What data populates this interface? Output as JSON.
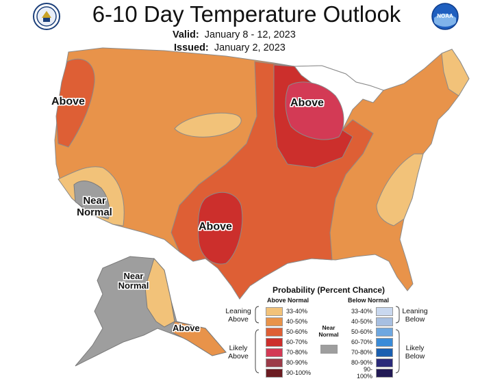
{
  "header": {
    "title": "6-10 Day Temperature Outlook",
    "valid_label": "Valid:",
    "valid_value": "January 8 - 12, 2023",
    "issued_label": "Issued:",
    "issued_value": "January 2, 2023"
  },
  "logos": {
    "left": "commerce-seal-icon",
    "right": "noaa-logo-icon"
  },
  "map_labels": {
    "above_west": "Above",
    "above_midwest": "Above",
    "above_texas": "Above",
    "near_normal_ca": "Near Normal",
    "near_normal_ak": "Near Normal",
    "above_ak": "Above"
  },
  "legend": {
    "title": "Probability (Percent Chance)",
    "above_header": "Above Normal",
    "below_header": "Below Normal",
    "leaning_above": "Leaning Above",
    "likely_above": "Likely Above",
    "leaning_below": "Leaning Below",
    "likely_below": "Likely Below",
    "near_normal": "Near Normal",
    "near_color": "#9e9e9e",
    "above": [
      {
        "range": "33-40%",
        "color": "#f2c279"
      },
      {
        "range": "40-50%",
        "color": "#e8934a"
      },
      {
        "range": "50-60%",
        "color": "#de5f35"
      },
      {
        "range": "60-70%",
        "color": "#cc2f2c"
      },
      {
        "range": "70-80%",
        "color": "#d33a55"
      },
      {
        "range": "80-90%",
        "color": "#9b3b48"
      },
      {
        "range": "90-100%",
        "color": "#6b1c22"
      }
    ],
    "below": [
      {
        "range": "33-40%",
        "color": "#c9d8ef"
      },
      {
        "range": "40-50%",
        "color": "#a7bfe1"
      },
      {
        "range": "50-60%",
        "color": "#6ea7e0"
      },
      {
        "range": "60-70%",
        "color": "#3a8bd8"
      },
      {
        "range": "70-80%",
        "color": "#1a5fb0"
      },
      {
        "range": "80-90%",
        "color": "#2a2a7a"
      },
      {
        "range": "90-100%",
        "color": "#221a55"
      }
    ]
  }
}
